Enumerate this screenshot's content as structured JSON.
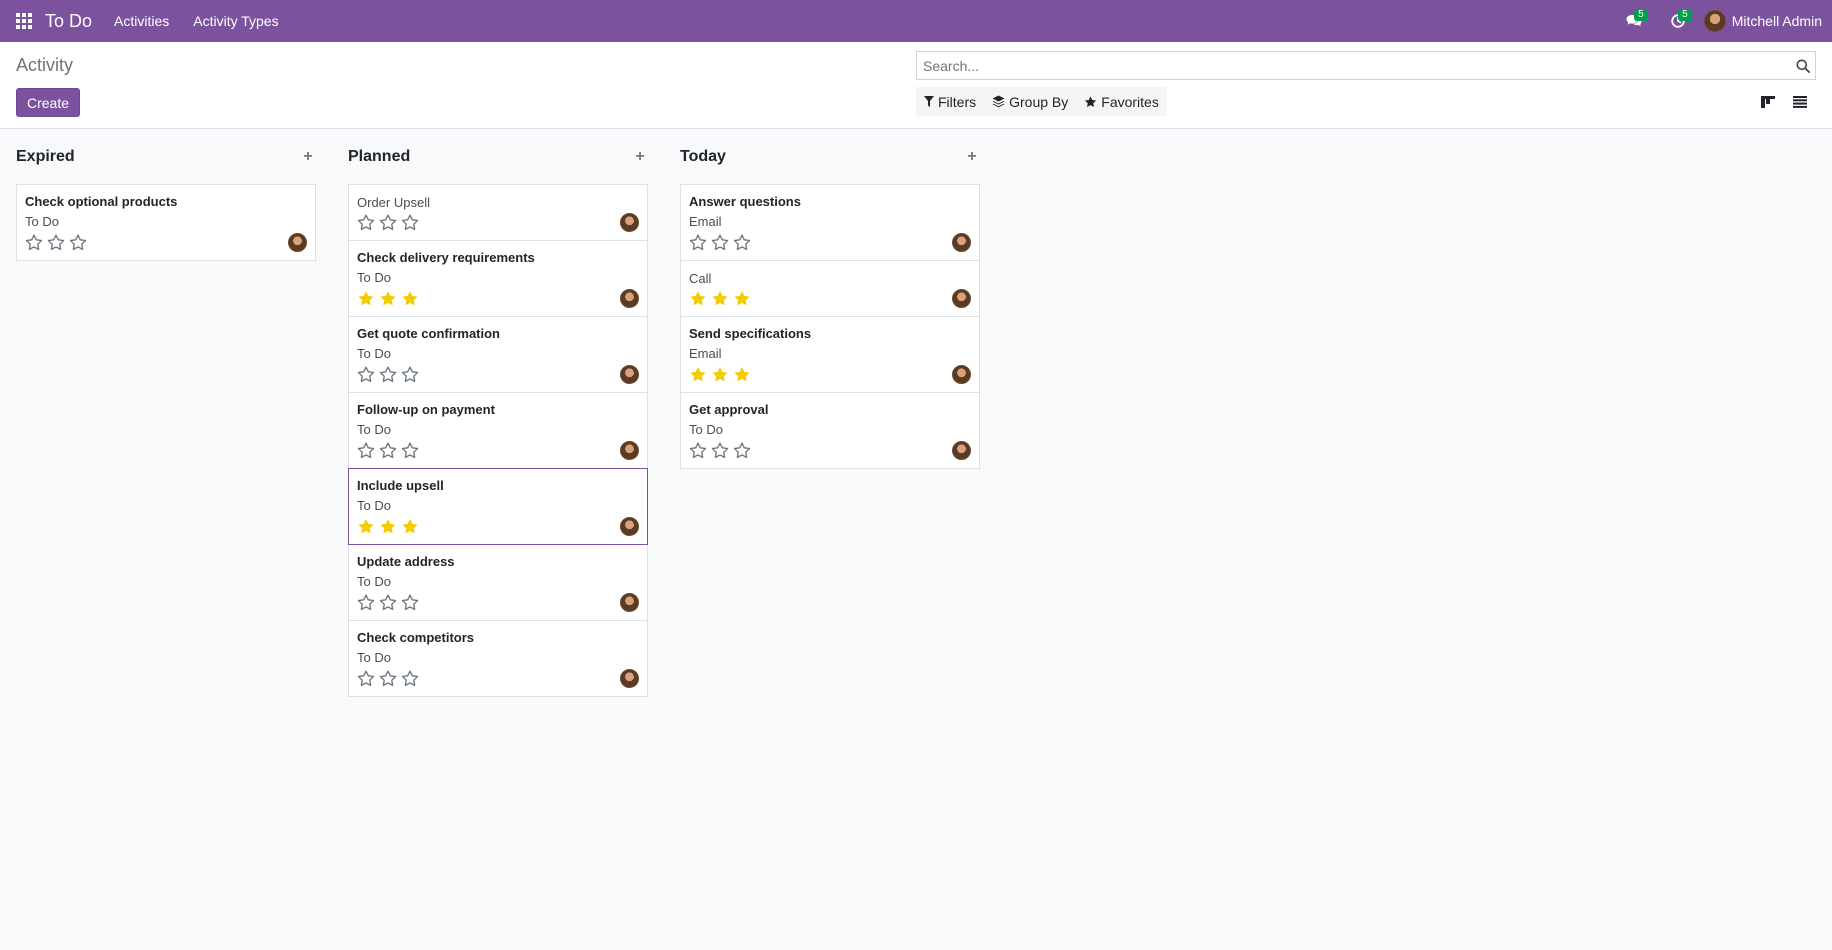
{
  "navbar": {
    "app_name": "To Do",
    "menu": [
      "Activities",
      "Activity Types"
    ],
    "messages_count": "5",
    "activities_count": "5",
    "user_name": "Mitchell Admin"
  },
  "control_panel": {
    "breadcrumb": "Activity",
    "create_label": "Create",
    "search_placeholder": "Search...",
    "filters_label": "Filters",
    "group_by_label": "Group By",
    "favorites_label": "Favorites"
  },
  "columns": [
    {
      "title": "Expired",
      "cards": [
        {
          "title": "Check optional products",
          "type": "To Do",
          "stars": 0
        }
      ]
    },
    {
      "title": "Planned",
      "cards": [
        {
          "title": "Order Upsell",
          "type": "",
          "stars": 0
        },
        {
          "title": "Check delivery requirements",
          "type": "To Do",
          "stars": 3
        },
        {
          "title": "Get quote confirmation",
          "type": "To Do",
          "stars": 0
        },
        {
          "title": "Follow-up on payment",
          "type": "To Do",
          "stars": 0
        },
        {
          "title": "Include upsell",
          "type": "To Do",
          "stars": 3
        },
        {
          "title": "Update address",
          "type": "To Do",
          "stars": 0
        },
        {
          "title": "Check competitors",
          "type": "To Do",
          "stars": 0
        }
      ]
    },
    {
      "title": "Today",
      "cards": [
        {
          "title": "Answer questions",
          "type": "Email",
          "stars": 0
        },
        {
          "title": "Call",
          "type": "",
          "stars": 3
        },
        {
          "title": "Send specifications",
          "type": "Email",
          "stars": 3
        },
        {
          "title": "Get approval",
          "type": "To Do",
          "stars": 0
        }
      ]
    }
  ],
  "colors": {
    "brand": "#7c529e",
    "badge": "#00a04a",
    "star_filled": "#f3cc00",
    "star_empty": "#6c757d"
  }
}
